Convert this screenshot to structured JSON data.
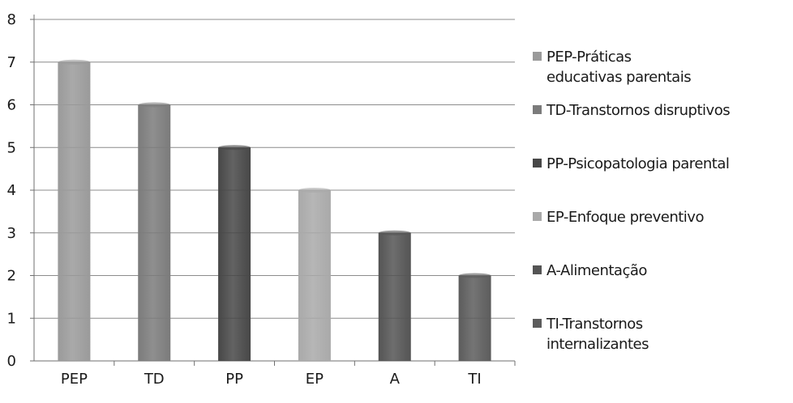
{
  "chart_data": {
    "type": "bar",
    "categories": [
      "PEP",
      "TD",
      "PP",
      "EP",
      "A",
      "TI"
    ],
    "values": [
      7,
      6,
      5,
      4,
      3,
      2
    ],
    "colors": [
      "#9a9a9a",
      "#7b7b7b",
      "#474747",
      "#a9a9a9",
      "#545454",
      "#5c5c5c"
    ],
    "ylim": [
      0,
      8
    ],
    "yticks": [
      "0",
      "1",
      "2",
      "3",
      "4",
      "5",
      "6",
      "7",
      "8"
    ],
    "grid": true,
    "legend_position": "right",
    "legend": [
      {
        "label": "PEP-Práticas educativas parentais",
        "color": "#9a9a9a"
      },
      {
        "label": "TD-Transtornos disruptivos",
        "color": "#7b7b7b"
      },
      {
        "label": "PP-Psicopatologia parental",
        "color": "#474747"
      },
      {
        "label": "EP-Enfoque preventivo",
        "color": "#a9a9a9"
      },
      {
        "label": "A-Alimentação",
        "color": "#545454"
      },
      {
        "label": "TI-Transtornos internalizantes",
        "color": "#5c5c5c"
      }
    ]
  }
}
